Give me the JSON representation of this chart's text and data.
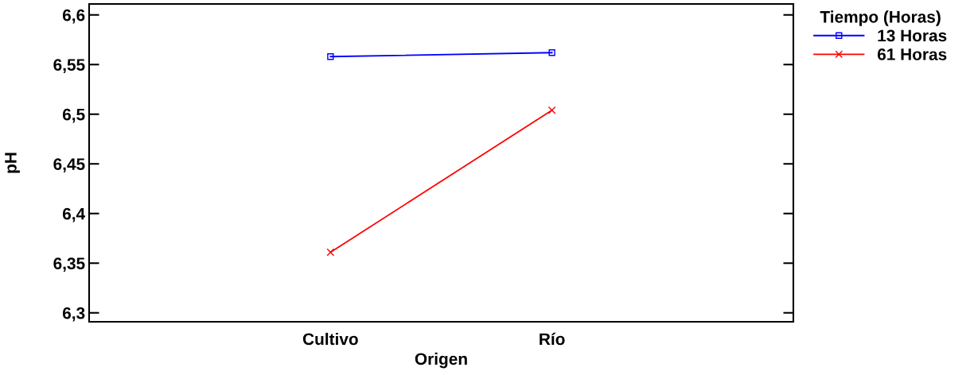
{
  "chart_data": {
    "type": "line",
    "xlabel": "Origen",
    "ylabel": "pH",
    "legend_title": "Tiempo (Horas)",
    "categories": [
      "Cultivo",
      "Río"
    ],
    "series": [
      {
        "name": "13 Horas",
        "color": "#0000ff",
        "marker": "square",
        "values": [
          6.558,
          6.562
        ]
      },
      {
        "name": "61 Horas",
        "color": "#ff0000",
        "marker": "cross",
        "values": [
          6.361,
          6.504
        ]
      }
    ],
    "ylim": [
      6.291,
      6.611
    ],
    "yticks": [
      {
        "value": 6.3,
        "label": "6,3"
      },
      {
        "value": 6.35,
        "label": "6,35"
      },
      {
        "value": 6.4,
        "label": "6,4"
      },
      {
        "value": 6.45,
        "label": "6,45"
      },
      {
        "value": 6.5,
        "label": "6,5"
      },
      {
        "value": 6.55,
        "label": "6,55"
      },
      {
        "value": 6.6,
        "label": "6,6"
      }
    ],
    "grid": false,
    "legend": "top right",
    "line_style": "solid"
  }
}
